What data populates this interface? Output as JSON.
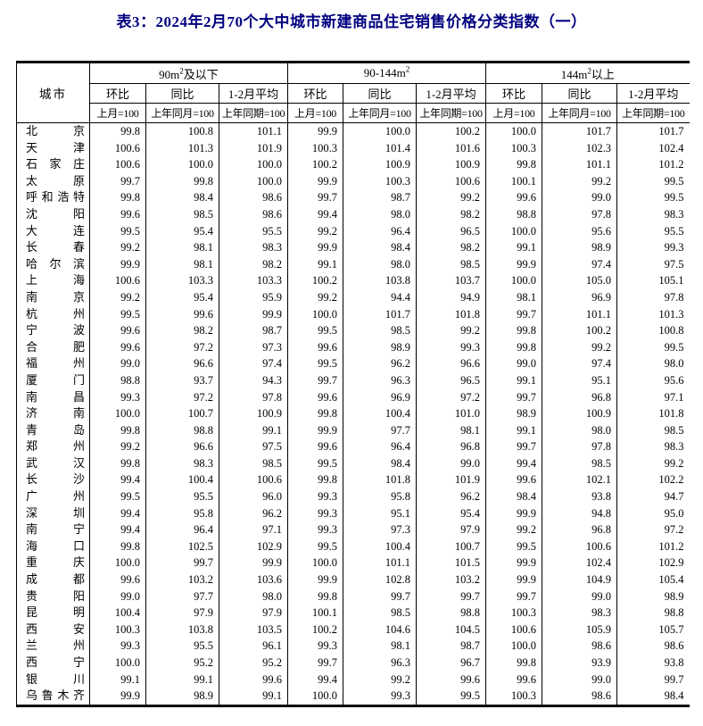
{
  "title": "表3：2024年2月70个大中城市新建商品住宅销售价格分类指数（一）",
  "colors": {
    "title": "#000080",
    "border": "#000000",
    "text": "#000000"
  },
  "table": {
    "city_header": "城市",
    "groups": [
      {
        "prefix": "90m",
        "sup": "2",
        "suffix": "及以下"
      },
      {
        "prefix": "90-144m",
        "sup": "2",
        "suffix": ""
      },
      {
        "prefix": "144m",
        "sup": "2",
        "suffix": "以上"
      }
    ],
    "sub_headers": [
      "环比",
      "同比",
      "1-2月平均"
    ],
    "base_headers": [
      "上月=100",
      "上年同月=100",
      "上年同期=100"
    ],
    "rows": [
      {
        "city": "北京",
        "values": [
          "99.8",
          "100.8",
          "101.1",
          "99.9",
          "100.0",
          "100.2",
          "100.0",
          "101.7",
          "101.7"
        ]
      },
      {
        "city": "天津",
        "values": [
          "100.6",
          "101.3",
          "101.9",
          "100.3",
          "101.4",
          "101.6",
          "100.3",
          "102.3",
          "102.4"
        ]
      },
      {
        "city": "石家庄",
        "values": [
          "100.6",
          "100.0",
          "100.0",
          "100.2",
          "100.9",
          "100.9",
          "99.8",
          "101.1",
          "101.2"
        ]
      },
      {
        "city": "太原",
        "values": [
          "99.7",
          "99.8",
          "100.0",
          "99.9",
          "100.3",
          "100.6",
          "100.1",
          "99.2",
          "99.5"
        ]
      },
      {
        "city": "呼和浩特",
        "values": [
          "99.8",
          "98.4",
          "98.6",
          "99.7",
          "98.7",
          "99.2",
          "99.6",
          "99.0",
          "99.5"
        ]
      },
      {
        "city": "沈阳",
        "values": [
          "99.6",
          "98.5",
          "98.6",
          "99.4",
          "98.0",
          "98.2",
          "98.8",
          "97.8",
          "98.3"
        ]
      },
      {
        "city": "大连",
        "values": [
          "99.5",
          "95.4",
          "95.5",
          "99.2",
          "96.4",
          "96.5",
          "100.0",
          "95.6",
          "95.5"
        ]
      },
      {
        "city": "长春",
        "values": [
          "99.2",
          "98.1",
          "98.3",
          "99.9",
          "98.4",
          "98.2",
          "99.1",
          "98.9",
          "99.3"
        ]
      },
      {
        "city": "哈尔滨",
        "values": [
          "99.9",
          "98.1",
          "98.2",
          "99.1",
          "98.0",
          "98.5",
          "99.9",
          "97.4",
          "97.5"
        ]
      },
      {
        "city": "上海",
        "values": [
          "100.6",
          "103.3",
          "103.3",
          "100.2",
          "103.8",
          "103.7",
          "100.0",
          "105.0",
          "105.1"
        ]
      },
      {
        "city": "南京",
        "values": [
          "99.2",
          "95.4",
          "95.9",
          "99.2",
          "94.4",
          "94.9",
          "98.1",
          "96.9",
          "97.8"
        ]
      },
      {
        "city": "杭州",
        "values": [
          "99.5",
          "99.6",
          "99.9",
          "100.0",
          "101.7",
          "101.8",
          "99.7",
          "101.1",
          "101.3"
        ]
      },
      {
        "city": "宁波",
        "values": [
          "99.6",
          "98.2",
          "98.7",
          "99.5",
          "98.5",
          "99.2",
          "99.8",
          "100.2",
          "100.8"
        ]
      },
      {
        "city": "合肥",
        "values": [
          "99.6",
          "97.2",
          "97.3",
          "99.6",
          "98.9",
          "99.3",
          "99.8",
          "99.2",
          "99.5"
        ]
      },
      {
        "city": "福州",
        "values": [
          "99.0",
          "96.6",
          "97.4",
          "99.5",
          "96.2",
          "96.6",
          "99.0",
          "97.4",
          "98.0"
        ]
      },
      {
        "city": "厦门",
        "values": [
          "98.8",
          "93.7",
          "94.3",
          "99.7",
          "96.3",
          "96.5",
          "99.1",
          "95.1",
          "95.6"
        ]
      },
      {
        "city": "南昌",
        "values": [
          "99.3",
          "97.2",
          "97.8",
          "99.6",
          "96.9",
          "97.2",
          "99.7",
          "96.8",
          "97.1"
        ]
      },
      {
        "city": "济南",
        "values": [
          "100.0",
          "100.7",
          "100.9",
          "99.8",
          "100.4",
          "101.0",
          "98.9",
          "100.9",
          "101.8"
        ]
      },
      {
        "city": "青岛",
        "values": [
          "99.8",
          "98.8",
          "99.1",
          "99.9",
          "97.7",
          "98.1",
          "99.1",
          "98.0",
          "98.5"
        ]
      },
      {
        "city": "郑州",
        "values": [
          "99.2",
          "96.6",
          "97.5",
          "99.6",
          "96.4",
          "96.8",
          "99.7",
          "97.8",
          "98.3"
        ]
      },
      {
        "city": "武汉",
        "values": [
          "99.8",
          "98.3",
          "98.5",
          "99.5",
          "98.4",
          "99.0",
          "99.4",
          "98.5",
          "99.2"
        ]
      },
      {
        "city": "长沙",
        "values": [
          "99.4",
          "100.4",
          "100.6",
          "99.8",
          "101.8",
          "101.9",
          "99.6",
          "102.1",
          "102.2"
        ]
      },
      {
        "city": "广州",
        "values": [
          "99.5",
          "95.5",
          "96.0",
          "99.3",
          "95.8",
          "96.2",
          "98.4",
          "93.8",
          "94.7"
        ]
      },
      {
        "city": "深圳",
        "values": [
          "99.4",
          "95.8",
          "96.2",
          "99.3",
          "95.1",
          "95.4",
          "99.9",
          "94.8",
          "95.0"
        ]
      },
      {
        "city": "南宁",
        "values": [
          "99.4",
          "96.4",
          "97.1",
          "99.3",
          "97.3",
          "97.9",
          "99.2",
          "96.8",
          "97.2"
        ]
      },
      {
        "city": "海口",
        "values": [
          "99.8",
          "102.5",
          "102.9",
          "99.5",
          "100.4",
          "100.7",
          "99.5",
          "100.6",
          "101.2"
        ]
      },
      {
        "city": "重庆",
        "values": [
          "100.0",
          "99.7",
          "99.9",
          "100.0",
          "101.1",
          "101.5",
          "99.9",
          "102.4",
          "102.9"
        ]
      },
      {
        "city": "成都",
        "values": [
          "99.6",
          "103.2",
          "103.6",
          "99.9",
          "102.8",
          "103.2",
          "99.9",
          "104.9",
          "105.4"
        ]
      },
      {
        "city": "贵阳",
        "values": [
          "99.0",
          "97.7",
          "98.0",
          "99.8",
          "99.7",
          "99.7",
          "99.7",
          "99.0",
          "98.9"
        ]
      },
      {
        "city": "昆明",
        "values": [
          "100.4",
          "97.9",
          "97.9",
          "100.1",
          "98.5",
          "98.8",
          "100.3",
          "98.3",
          "98.8"
        ]
      },
      {
        "city": "西安",
        "values": [
          "100.3",
          "103.8",
          "103.5",
          "100.2",
          "104.6",
          "104.5",
          "100.6",
          "105.9",
          "105.7"
        ]
      },
      {
        "city": "兰州",
        "values": [
          "99.3",
          "95.5",
          "96.1",
          "99.3",
          "98.1",
          "98.7",
          "100.0",
          "98.6",
          "98.6"
        ]
      },
      {
        "city": "西宁",
        "values": [
          "100.0",
          "95.2",
          "95.2",
          "99.7",
          "96.3",
          "96.7",
          "99.8",
          "93.9",
          "93.8"
        ]
      },
      {
        "city": "银川",
        "values": [
          "99.1",
          "99.1",
          "99.6",
          "99.4",
          "99.2",
          "99.6",
          "99.6",
          "99.0",
          "99.7"
        ]
      },
      {
        "city": "乌鲁木齐",
        "values": [
          "99.9",
          "98.9",
          "99.1",
          "100.0",
          "99.3",
          "99.5",
          "100.3",
          "98.6",
          "98.4"
        ]
      }
    ]
  }
}
